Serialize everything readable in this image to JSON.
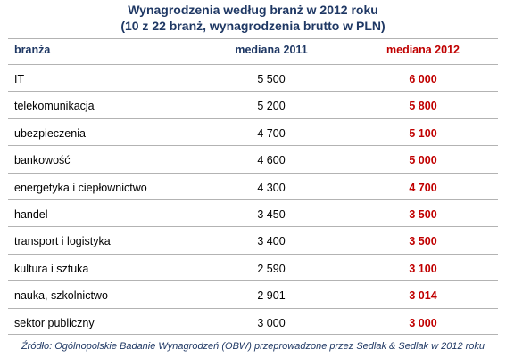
{
  "title_line1": "Wynagrodzenia według branż w 2012 roku",
  "title_line2": "(10 z 22 branż, wynagrodzenia brutto w PLN)",
  "source": "Źródło: Ogólnopolskie Badanie Wynagrodzeń (OBW) przeprowadzone przez Sedlak & Sedlak w 2012 roku",
  "colors": {
    "header_blue": "#1f3864",
    "highlight_red": "#c00000",
    "rule_gray": "#b3b3b3"
  },
  "chart_data": {
    "type": "table",
    "title": "Wynagrodzenia według branż w 2012 roku",
    "subtitle": "(10 z 22 branż, wynagrodzenia brutto w PLN)",
    "columns": [
      "branża",
      "mediana 2011",
      "mediana 2012"
    ],
    "rows": [
      [
        "IT",
        "5 500",
        "6 000"
      ],
      [
        "telekomunikacja",
        "5 200",
        "5 800"
      ],
      [
        "ubezpieczenia",
        "4 700",
        "5 100"
      ],
      [
        "bankowość",
        "4 600",
        "5 000"
      ],
      [
        "energetyka i ciepłownictwo",
        "4 300",
        "4 700"
      ],
      [
        "handel",
        "3 450",
        "3 500"
      ],
      [
        "transport i logistyka",
        "3 400",
        "3 500"
      ],
      [
        "kultura i sztuka",
        "2 590",
        "3 100"
      ],
      [
        "nauka, szkolnictwo",
        "2 901",
        "3 014"
      ],
      [
        "sektor publiczny",
        "3 000",
        "3 000"
      ]
    ]
  }
}
